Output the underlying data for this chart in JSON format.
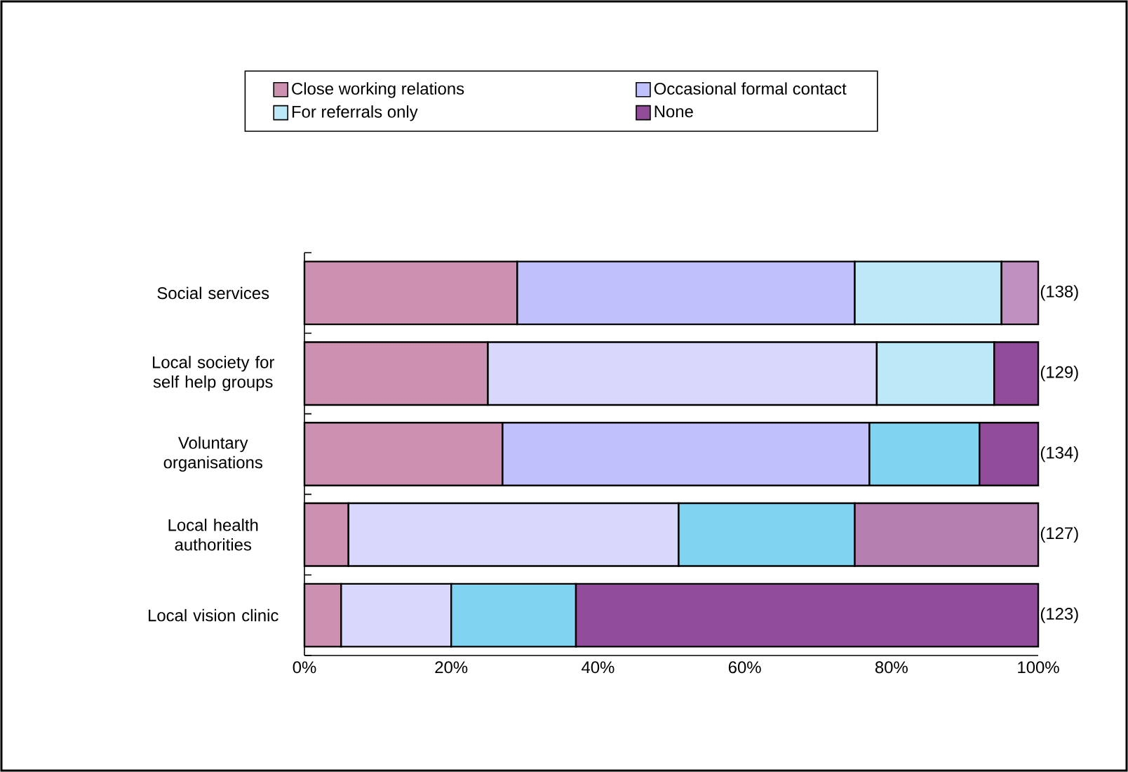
{
  "chart_data": {
    "type": "bar",
    "orientation": "horizontal",
    "stacked": true,
    "categories": [
      "Social services",
      "Local society for self help groups",
      "Voluntary organisations",
      "Local health authorities",
      "Local vision clinic"
    ],
    "series": [
      {
        "name": "Close working relations",
        "color": "#cc90b0",
        "colors": [
          "#cc90b0",
          "#cc90b0",
          "#cc90b0",
          "#cc90b0",
          "#cc90b0"
        ],
        "values": [
          29,
          25,
          27,
          6,
          5
        ]
      },
      {
        "name": "Occasional formal contact",
        "color": "#c0c0fc",
        "colors": [
          "#c0c0fc",
          "#d8d8fc",
          "#c0c0fc",
          "#d8d8fc",
          "#d8d8fc"
        ],
        "values": [
          46,
          53,
          50,
          45,
          15
        ]
      },
      {
        "name": "For referrals only",
        "color": "#bde8f8",
        "colors": [
          "#bde8f8",
          "#bde8f8",
          "#80d4f2",
          "#80d4f2",
          "#80d4f2"
        ],
        "values": [
          20,
          16,
          15,
          24,
          17
        ]
      },
      {
        "name": "None",
        "color": "#904c98",
        "colors": [
          "#c090c0",
          "#904c98",
          "#904c98",
          "#b480b0",
          "#904c98"
        ],
        "values": [
          5,
          6,
          8,
          25,
          63
        ]
      }
    ],
    "xlim": [
      0,
      100
    ],
    "xticks": [
      {
        "value": 0,
        "label": "0%"
      },
      {
        "value": 20,
        "label": "20%"
      },
      {
        "value": 40,
        "label": "40%"
      },
      {
        "value": 60,
        "label": "60%"
      },
      {
        "value": 80,
        "label": "80%"
      },
      {
        "value": 100,
        "label": "100%"
      }
    ],
    "annotations": [
      "(138)",
      "(129)",
      "(134)",
      "(127)",
      "(123)"
    ],
    "grid": false,
    "legend": "top"
  }
}
